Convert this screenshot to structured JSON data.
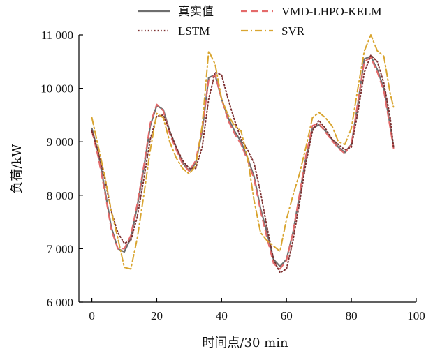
{
  "chart_data": {
    "type": "line",
    "xlabel": "时间点/30 min",
    "ylabel": "负荷/kW",
    "xlim": [
      -4,
      100
    ],
    "ylim": [
      6000,
      11000
    ],
    "x_ticks": [
      0,
      20,
      40,
      60,
      80,
      100
    ],
    "x_tick_labels": [
      "0",
      "20",
      "40",
      "60",
      "80",
      "100"
    ],
    "y_ticks": [
      6000,
      7000,
      8000,
      9000,
      10000,
      11000
    ],
    "y_tick_labels": [
      "6 000",
      "7 000",
      "8 000",
      "9 000",
      "10 000",
      "11 000"
    ],
    "grid": false,
    "legend_position": "top",
    "series": [
      {
        "name": "真实值",
        "color": "#6e6e6e",
        "dash": "solid",
        "points": [
          [
            0,
            9250
          ],
          [
            2,
            8780
          ],
          [
            4,
            8100
          ],
          [
            6,
            7400
          ],
          [
            8,
            7000
          ],
          [
            10,
            6940
          ],
          [
            12,
            7200
          ],
          [
            14,
            7800
          ],
          [
            16,
            8500
          ],
          [
            18,
            9300
          ],
          [
            20,
            9680
          ],
          [
            22,
            9600
          ],
          [
            24,
            9200
          ],
          [
            26,
            8900
          ],
          [
            28,
            8600
          ],
          [
            30,
            8450
          ],
          [
            32,
            8600
          ],
          [
            34,
            9200
          ],
          [
            36,
            10200
          ],
          [
            38,
            10250
          ],
          [
            40,
            9800
          ],
          [
            42,
            9450
          ],
          [
            44,
            9200
          ],
          [
            46,
            9000
          ],
          [
            48,
            8700
          ],
          [
            50,
            8350
          ],
          [
            52,
            7750
          ],
          [
            54,
            7300
          ],
          [
            56,
            6800
          ],
          [
            58,
            6670
          ],
          [
            60,
            6800
          ],
          [
            62,
            7300
          ],
          [
            64,
            8000
          ],
          [
            66,
            8700
          ],
          [
            68,
            9250
          ],
          [
            70,
            9320
          ],
          [
            72,
            9200
          ],
          [
            74,
            9050
          ],
          [
            76,
            8900
          ],
          [
            78,
            8800
          ],
          [
            80,
            8950
          ],
          [
            82,
            9700
          ],
          [
            84,
            10550
          ],
          [
            86,
            10600
          ],
          [
            88,
            10350
          ],
          [
            90,
            10000
          ],
          [
            92,
            9300
          ],
          [
            93,
            8900
          ]
        ]
      },
      {
        "name": "VMD-LHPO-KELM",
        "color": "#e46a6a",
        "dash": "dashed",
        "points": [
          [
            0,
            9200
          ],
          [
            2,
            8700
          ],
          [
            4,
            8050
          ],
          [
            6,
            7350
          ],
          [
            8,
            7000
          ],
          [
            10,
            7000
          ],
          [
            12,
            7250
          ],
          [
            14,
            7850
          ],
          [
            16,
            8550
          ],
          [
            18,
            9350
          ],
          [
            20,
            9700
          ],
          [
            22,
            9580
          ],
          [
            24,
            9150
          ],
          [
            26,
            8850
          ],
          [
            28,
            8580
          ],
          [
            30,
            8450
          ],
          [
            32,
            8650
          ],
          [
            34,
            9250
          ],
          [
            36,
            10150
          ],
          [
            38,
            10250
          ],
          [
            40,
            9800
          ],
          [
            42,
            9400
          ],
          [
            44,
            9150
          ],
          [
            46,
            8950
          ],
          [
            48,
            8650
          ],
          [
            50,
            8300
          ],
          [
            52,
            7700
          ],
          [
            54,
            7200
          ],
          [
            56,
            6720
          ],
          [
            58,
            6620
          ],
          [
            60,
            6780
          ],
          [
            62,
            7300
          ],
          [
            64,
            8020
          ],
          [
            66,
            8750
          ],
          [
            68,
            9300
          ],
          [
            70,
            9350
          ],
          [
            72,
            9180
          ],
          [
            74,
            9020
          ],
          [
            76,
            8880
          ],
          [
            78,
            8780
          ],
          [
            80,
            8950
          ],
          [
            82,
            9750
          ],
          [
            84,
            10500
          ],
          [
            86,
            10580
          ],
          [
            88,
            10300
          ],
          [
            90,
            9950
          ],
          [
            92,
            9250
          ],
          [
            93,
            8880
          ]
        ]
      },
      {
        "name": "LSTM",
        "color": "#7d3030",
        "dash": "dotted",
        "points": [
          [
            0,
            9200
          ],
          [
            2,
            8800
          ],
          [
            4,
            8300
          ],
          [
            6,
            7700
          ],
          [
            8,
            7300
          ],
          [
            10,
            7100
          ],
          [
            12,
            7150
          ],
          [
            14,
            7600
          ],
          [
            16,
            8300
          ],
          [
            18,
            9050
          ],
          [
            20,
            9480
          ],
          [
            22,
            9500
          ],
          [
            24,
            9200
          ],
          [
            26,
            8900
          ],
          [
            28,
            8650
          ],
          [
            30,
            8500
          ],
          [
            32,
            8500
          ],
          [
            34,
            8900
          ],
          [
            36,
            9800
          ],
          [
            38,
            10300
          ],
          [
            40,
            10250
          ],
          [
            42,
            9800
          ],
          [
            44,
            9400
          ],
          [
            46,
            9050
          ],
          [
            48,
            8850
          ],
          [
            50,
            8600
          ],
          [
            52,
            8050
          ],
          [
            54,
            7400
          ],
          [
            56,
            6800
          ],
          [
            58,
            6550
          ],
          [
            60,
            6620
          ],
          [
            62,
            7150
          ],
          [
            64,
            7850
          ],
          [
            66,
            8600
          ],
          [
            68,
            9200
          ],
          [
            70,
            9400
          ],
          [
            72,
            9250
          ],
          [
            74,
            9050
          ],
          [
            76,
            8950
          ],
          [
            78,
            8850
          ],
          [
            80,
            8900
          ],
          [
            82,
            9550
          ],
          [
            84,
            10300
          ],
          [
            86,
            10620
          ],
          [
            88,
            10500
          ],
          [
            90,
            10100
          ],
          [
            92,
            9450
          ],
          [
            93,
            8900
          ]
        ]
      },
      {
        "name": "SVR",
        "color": "#d9a530",
        "dash": "dashdot",
        "points": [
          [
            0,
            9450
          ],
          [
            2,
            8900
          ],
          [
            4,
            8350
          ],
          [
            6,
            7700
          ],
          [
            8,
            7200
          ],
          [
            10,
            6650
          ],
          [
            12,
            6620
          ],
          [
            14,
            7200
          ],
          [
            16,
            8000
          ],
          [
            18,
            8850
          ],
          [
            20,
            9530
          ],
          [
            22,
            9450
          ],
          [
            24,
            9000
          ],
          [
            26,
            8700
          ],
          [
            28,
            8500
          ],
          [
            30,
            8400
          ],
          [
            32,
            8550
          ],
          [
            34,
            9300
          ],
          [
            36,
            10700
          ],
          [
            38,
            10450
          ],
          [
            40,
            9800
          ],
          [
            42,
            9500
          ],
          [
            44,
            9300
          ],
          [
            46,
            9200
          ],
          [
            48,
            8700
          ],
          [
            50,
            7900
          ],
          [
            52,
            7300
          ],
          [
            54,
            7150
          ],
          [
            56,
            7050
          ],
          [
            58,
            6950
          ],
          [
            60,
            7550
          ],
          [
            62,
            8000
          ],
          [
            64,
            8400
          ],
          [
            66,
            8900
          ],
          [
            68,
            9450
          ],
          [
            70,
            9550
          ],
          [
            72,
            9450
          ],
          [
            74,
            9300
          ],
          [
            76,
            9000
          ],
          [
            78,
            8950
          ],
          [
            80,
            9250
          ],
          [
            82,
            10000
          ],
          [
            84,
            10700
          ],
          [
            86,
            11000
          ],
          [
            88,
            10700
          ],
          [
            90,
            10600
          ],
          [
            92,
            9900
          ],
          [
            93,
            9650
          ]
        ]
      }
    ]
  }
}
